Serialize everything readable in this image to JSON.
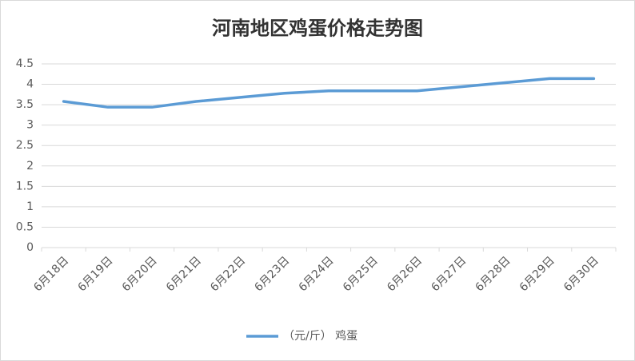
{
  "chart_data": {
    "type": "line",
    "title": "河南地区鸡蛋价格走势图",
    "categories": [
      "6月18日",
      "6月19日",
      "6月20日",
      "6月21日",
      "6月22日",
      "6月23日",
      "6月24日",
      "6月25日",
      "6月26日",
      "6月27日",
      "6月28日",
      "6月29日",
      "6月30日"
    ],
    "series": [
      {
        "name": "（元/斤） 鸡蛋",
        "color": "#5b9bd5",
        "values": [
          3.58,
          3.44,
          3.44,
          3.58,
          3.68,
          3.78,
          3.84,
          3.84,
          3.84,
          3.94,
          4.04,
          4.14,
          4.14
        ]
      }
    ],
    "ylim": [
      0,
      4.5
    ],
    "yticks": [
      0,
      0.5,
      1,
      1.5,
      2,
      2.5,
      3,
      3.5,
      4,
      4.5
    ],
    "grid": true,
    "legend": "bottom"
  }
}
